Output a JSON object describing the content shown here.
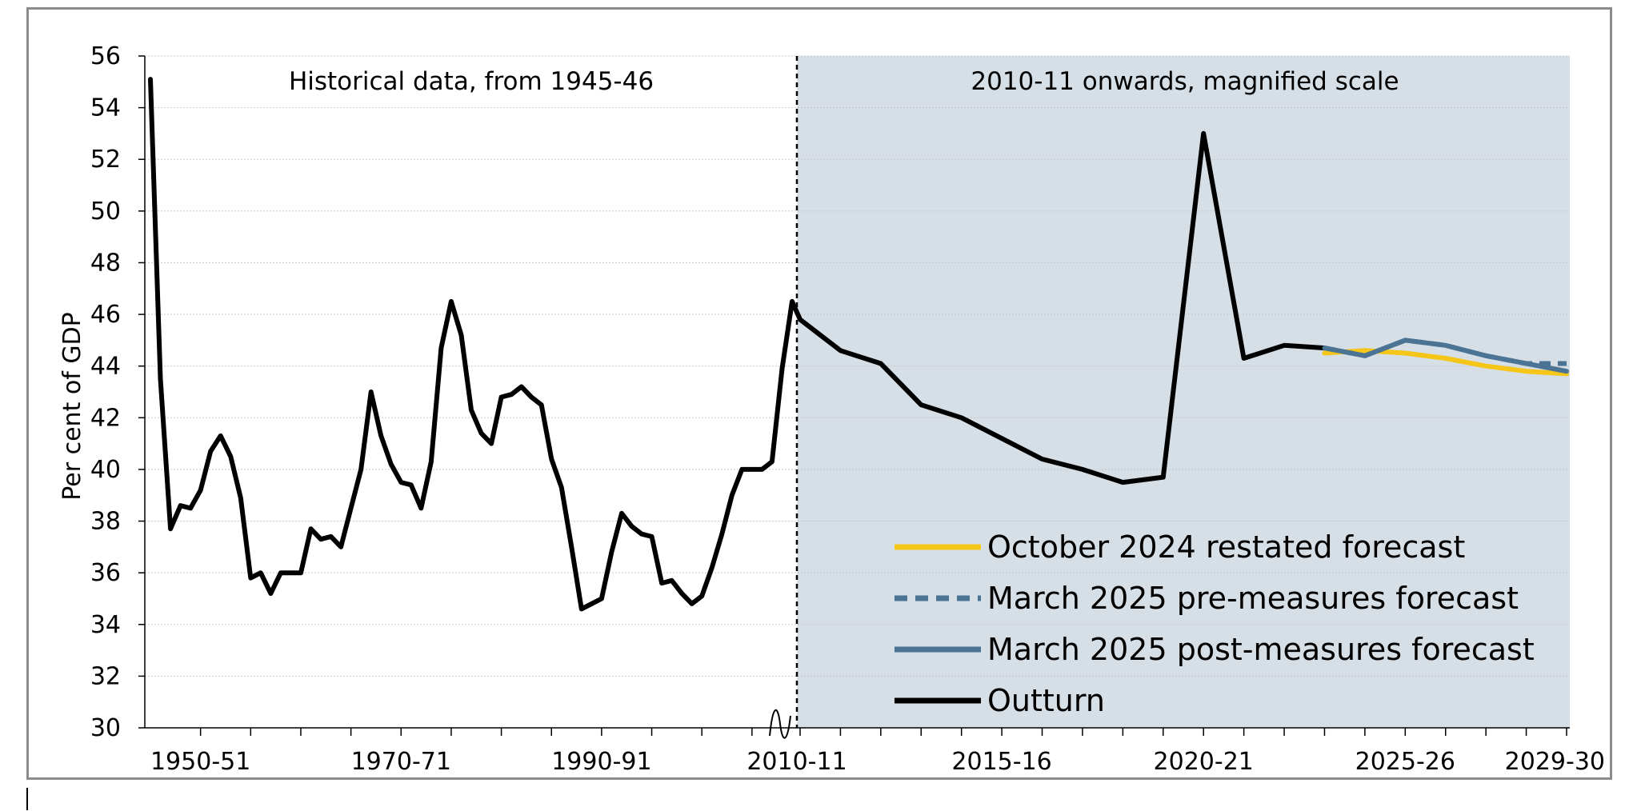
{
  "chart_data": {
    "type": "line",
    "ylabel": "Per cent of GDP",
    "ylim": [
      30,
      56
    ],
    "yticks": [
      30,
      32,
      34,
      36,
      38,
      40,
      42,
      44,
      46,
      48,
      50,
      52,
      54,
      56
    ],
    "grid": "horizontal",
    "legend_position": "bottom-right",
    "panels": {
      "left": {
        "label": "Historical data, from 1945-46",
        "xticks": [
          "1950-51",
          "1970-71",
          "1990-91",
          "2010-11"
        ]
      },
      "right": {
        "label": "2010-11 onwards, magnified scale",
        "xticks": [
          "2015-16",
          "2020-21",
          "2025-26",
          "2029-30"
        ]
      }
    },
    "series": [
      {
        "name": "October 2024 restated forecast",
        "color": "#f5c518",
        "style": "solid",
        "x": [
          "2023-24",
          "2024-25",
          "2025-26",
          "2026-27",
          "2027-28",
          "2028-29",
          "2029-30"
        ],
        "values": [
          44.5,
          44.6,
          44.5,
          44.3,
          44.0,
          43.8,
          43.7
        ]
      },
      {
        "name": "March 2025 pre-measures forecast",
        "color": "#4a7394",
        "style": "dashed",
        "x": [
          "2023-24",
          "2024-25",
          "2025-26",
          "2026-27",
          "2027-28",
          "2028-29",
          "2029-30"
        ],
        "values": [
          44.7,
          44.4,
          45.0,
          44.8,
          44.4,
          44.1,
          44.1
        ]
      },
      {
        "name": "March 2025 post-measures forecast",
        "color": "#4a7394",
        "style": "solid",
        "x": [
          "2023-24",
          "2024-25",
          "2025-26",
          "2026-27",
          "2027-28",
          "2028-29",
          "2029-30"
        ],
        "values": [
          44.7,
          44.4,
          45.0,
          44.8,
          44.4,
          44.1,
          43.8
        ]
      },
      {
        "name": "Outturn",
        "color": "#000000",
        "style": "solid",
        "x": [
          "1945-46",
          "1946-47",
          "1947-48",
          "1948-49",
          "1949-50",
          "1950-51",
          "1951-52",
          "1952-53",
          "1953-54",
          "1954-55",
          "1955-56",
          "1956-57",
          "1957-58",
          "1958-59",
          "1959-60",
          "1960-61",
          "1961-62",
          "1962-63",
          "1963-64",
          "1964-65",
          "1965-66",
          "1966-67",
          "1967-68",
          "1968-69",
          "1969-70",
          "1970-71",
          "1971-72",
          "1972-73",
          "1973-74",
          "1974-75",
          "1975-76",
          "1976-77",
          "1977-78",
          "1978-79",
          "1979-80",
          "1980-81",
          "1981-82",
          "1982-83",
          "1983-84",
          "1984-85",
          "1985-86",
          "1986-87",
          "1987-88",
          "1988-89",
          "1989-90",
          "1990-91",
          "1991-92",
          "1992-93",
          "1993-94",
          "1994-95",
          "1995-96",
          "1996-97",
          "1997-98",
          "1998-99",
          "1999-00",
          "2000-01",
          "2001-02",
          "2002-03",
          "2003-04",
          "2004-05",
          "2005-06",
          "2006-07",
          "2007-08",
          "2008-09",
          "2009-10",
          "2010-11",
          "2011-12",
          "2012-13",
          "2013-14",
          "2014-15",
          "2015-16",
          "2016-17",
          "2017-18",
          "2018-19",
          "2019-20",
          "2020-21",
          "2021-22",
          "2022-23",
          "2023-24"
        ],
        "values": [
          55.1,
          43.5,
          37.7,
          38.6,
          38.5,
          39.2,
          40.7,
          41.3,
          40.5,
          38.9,
          35.8,
          36.0,
          35.2,
          36.0,
          36.0,
          36.0,
          37.7,
          37.3,
          37.4,
          37.0,
          38.5,
          40.0,
          43.0,
          41.3,
          40.2,
          39.5,
          39.4,
          38.5,
          40.3,
          44.7,
          46.5,
          45.2,
          42.3,
          41.4,
          41.0,
          42.8,
          42.9,
          43.2,
          42.8,
          42.5,
          40.4,
          39.3,
          37.0,
          34.6,
          34.8,
          35.0,
          36.8,
          38.3,
          37.8,
          37.5,
          37.4,
          35.6,
          35.7,
          35.2,
          34.8,
          35.1,
          36.2,
          37.5,
          39.0,
          40.0,
          40.0,
          40.0,
          40.3,
          43.9,
          46.5,
          45.8,
          44.6,
          44.1,
          42.5,
          42.0,
          41.2,
          40.4,
          40.0,
          39.5,
          39.7,
          53.0,
          44.3,
          44.8,
          44.7
        ]
      }
    ]
  }
}
